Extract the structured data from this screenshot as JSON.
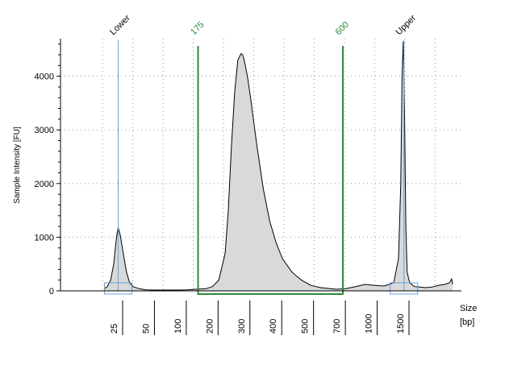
{
  "chart_data": {
    "type": "area",
    "ylabel": "Sample Intensity [FU]",
    "xlabel_line1": "Size",
    "xlabel_line2": "[bp]",
    "ylim": [
      0,
      4700
    ],
    "yticks": [
      0,
      1000,
      2000,
      3000,
      4000
    ],
    "xticks": [
      {
        "label": "25",
        "pos": 0
      },
      {
        "label": "50",
        "pos": 1
      },
      {
        "label": "100",
        "pos": 2
      },
      {
        "label": "200",
        "pos": 3
      },
      {
        "label": "300",
        "pos": 4
      },
      {
        "label": "400",
        "pos": 5
      },
      {
        "label": "500",
        "pos": 6
      },
      {
        "label": "700",
        "pos": 7
      },
      {
        "label": "1000",
        "pos": 8
      },
      {
        "label": "1500",
        "pos": 9
      }
    ],
    "markers": [
      {
        "label": "Lower",
        "pos": 0.14,
        "color": "#6a9fd8"
      },
      {
        "label": "Upper",
        "pos": 9.12,
        "color": "#6a9fd8"
      }
    ],
    "region": {
      "start_label": "175",
      "end_label": "600",
      "start_pos": 2.65,
      "end_pos": 7.2,
      "color": "#2e8b3a"
    },
    "fill_color": "#d9d9d9",
    "line_color": "#000000",
    "grid": true,
    "series": [
      {
        "x": [
          -0.3,
          -0.2,
          -0.1,
          0.0,
          0.05,
          0.1,
          0.14,
          0.2,
          0.3,
          0.4,
          0.5,
          0.6,
          0.8,
          1.0,
          1.3,
          1.6,
          2.0,
          2.3,
          2.6,
          2.9,
          3.1,
          3.3,
          3.5,
          3.6,
          3.7,
          3.8,
          3.9,
          4.0,
          4.05,
          4.1,
          4.2,
          4.3,
          4.5,
          4.7,
          4.9,
          5.1,
          5.3,
          5.6,
          5.9,
          6.2,
          6.5,
          6.8,
          7.0,
          7.3,
          7.6,
          7.9,
          8.2,
          8.5,
          8.8,
          8.95,
          9.02,
          9.06,
          9.1,
          9.14,
          9.18,
          9.22,
          9.3,
          9.45,
          9.6,
          9.8,
          10.0,
          10.2,
          10.4,
          10.55,
          10.62,
          10.65
        ],
        "y": [
          40,
          80,
          200,
          500,
          800,
          1050,
          1180,
          1050,
          700,
          350,
          150,
          80,
          40,
          20,
          15,
          15,
          15,
          20,
          30,
          40,
          80,
          200,
          700,
          1500,
          2700,
          3700,
          4300,
          4420,
          4400,
          4300,
          4000,
          3600,
          2700,
          1900,
          1300,
          900,
          600,
          350,
          200,
          100,
          60,
          40,
          30,
          40,
          80,
          120,
          100,
          90,
          150,
          600,
          2000,
          4000,
          4650,
          3300,
          1200,
          350,
          150,
          80,
          70,
          60,
          70,
          100,
          120,
          150,
          220,
          120
        ]
      }
    ]
  }
}
